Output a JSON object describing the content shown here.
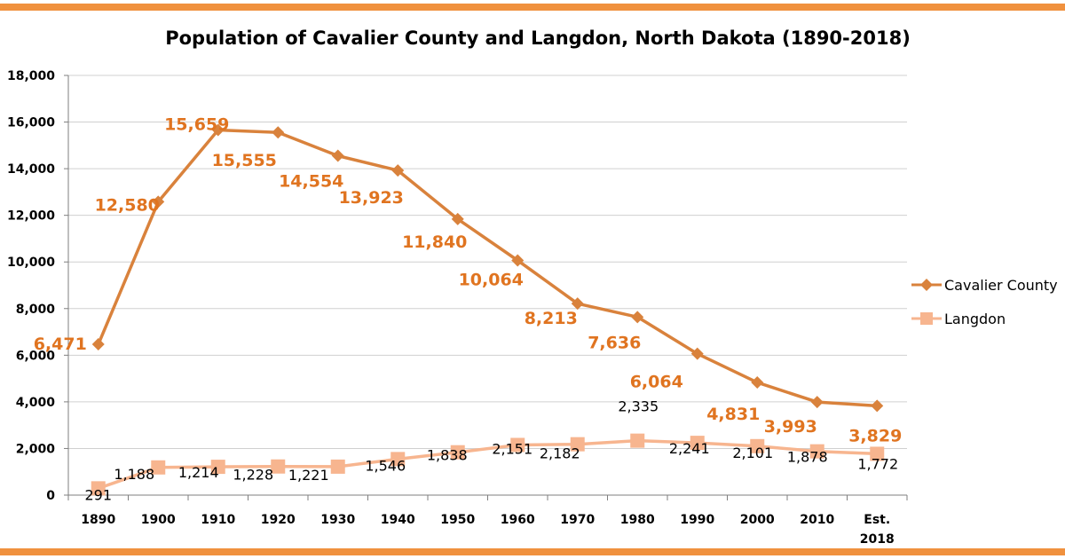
{
  "colors": {
    "band": "#f0913e",
    "county_line": "#d9823c",
    "county_label": "#e07420",
    "langdon_line": "#f7b58f",
    "grid": "#d0d0d0",
    "axis": "#7f7f7f"
  },
  "chart_data": {
    "type": "line",
    "title": "Population of Cavalier County and Langdon, North Dakota (1890-2018)",
    "categories": [
      "1890",
      "1900",
      "1910",
      "1920",
      "1930",
      "1940",
      "1950",
      "1960",
      "1970",
      "1980",
      "1990",
      "2000",
      "2010",
      "Est. 2018"
    ],
    "ylim": [
      0,
      18000
    ],
    "yticks": [
      0,
      2000,
      4000,
      6000,
      8000,
      10000,
      12000,
      14000,
      16000,
      18000
    ],
    "ytick_labels": [
      "0",
      "2,000",
      "4,000",
      "6,000",
      "8,000",
      "10,000",
      "12,000",
      "14,000",
      "16,000",
      "18,000"
    ],
    "grid": true,
    "legend_position": "right",
    "series": [
      {
        "name": "Cavalier County",
        "marker": "diamond",
        "values": [
          6471,
          12580,
          15659,
          15555,
          14554,
          13923,
          11840,
          10064,
          8213,
          7636,
          6064,
          4831,
          3993,
          3829
        ],
        "labels": [
          "6,471",
          "12,580",
          "15,659",
          "15,555",
          "14,554",
          "13,923",
          "11,840",
          "10,064",
          "8,213",
          "7,636",
          "6,064",
          "4,831",
          "3,993",
          "3,829"
        ]
      },
      {
        "name": "Langdon",
        "marker": "square",
        "values": [
          291,
          1188,
          1214,
          1228,
          1221,
          1546,
          1838,
          2151,
          2182,
          2335,
          2241,
          2101,
          1878,
          1772
        ],
        "labels": [
          "291",
          "1,188",
          "1,214",
          "1,228",
          "1,221",
          "1,546",
          "1,838",
          "2,151",
          "2,182",
          "2,335",
          "2,241",
          "2,101",
          "1,878",
          "1,772"
        ]
      }
    ]
  }
}
